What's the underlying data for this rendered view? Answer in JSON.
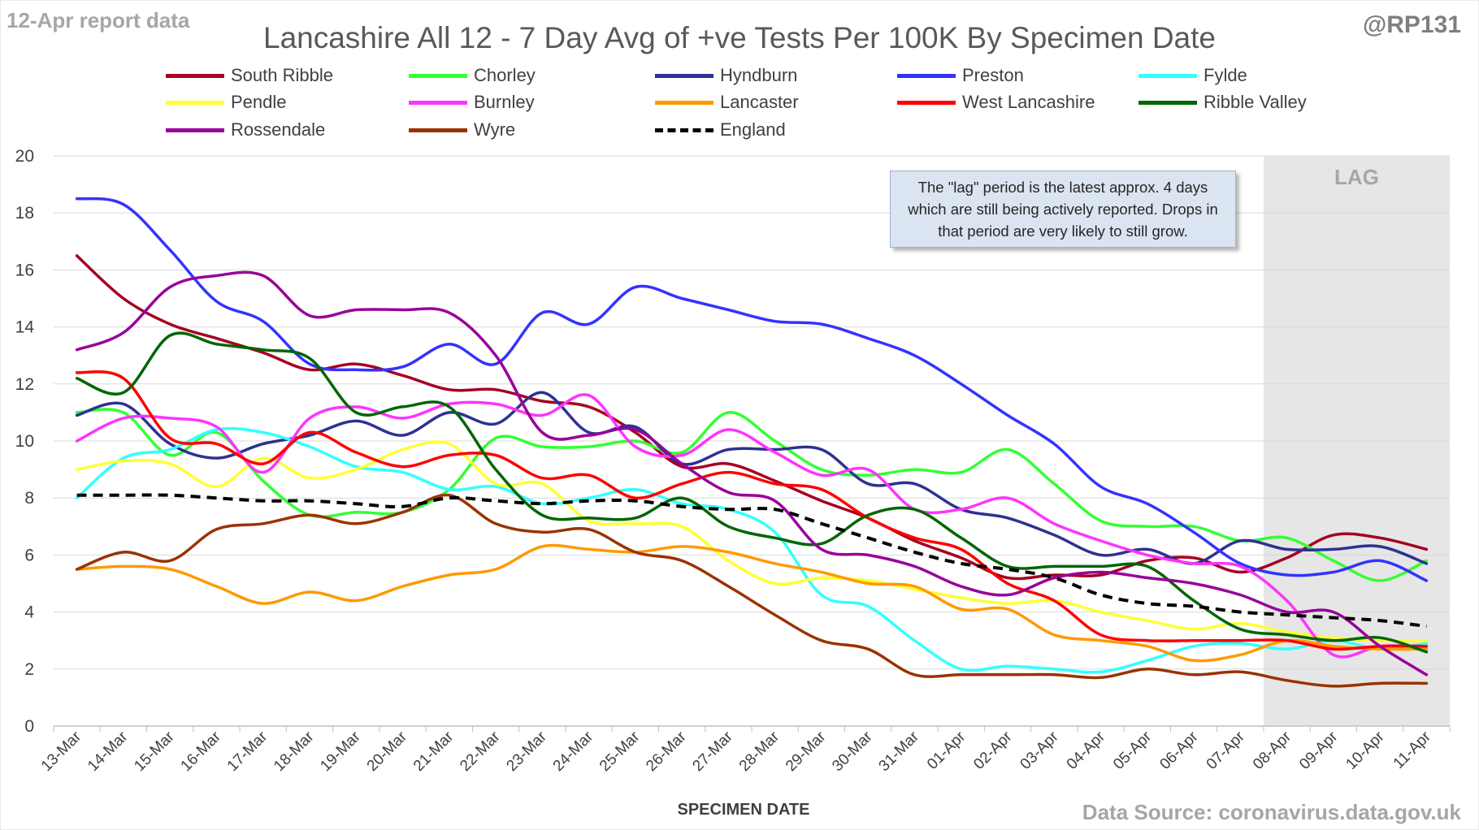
{
  "header": {
    "report_note": "12-Apr report data",
    "handle": "@RP131",
    "source": "Data Source: coronavirus.data.gov.uk"
  },
  "annotation": {
    "text": "The \"lag\" period is the latest approx. 4 days which are still being actively reported.  Drops in that period are very likely to still grow."
  },
  "chart_data": {
    "type": "line",
    "title": "Lancashire All 12 - 7 Day Avg of +ve Tests Per 100K By Specimen Date",
    "xlabel": "SPECIMEN DATE",
    "ylabel": "",
    "ylim": [
      0,
      20
    ],
    "yticks": [
      0,
      2,
      4,
      6,
      8,
      10,
      12,
      14,
      16,
      18,
      20
    ],
    "grid": true,
    "legend_position": "top",
    "lag_label": "LAG",
    "lag_start": "08-Apr",
    "x": [
      "13-Mar",
      "14-Mar",
      "15-Mar",
      "16-Mar",
      "17-Mar",
      "18-Mar",
      "19-Mar",
      "20-Mar",
      "21-Mar",
      "22-Mar",
      "23-Mar",
      "24-Mar",
      "25-Mar",
      "26-Mar",
      "27-Mar",
      "28-Mar",
      "29-Mar",
      "30-Mar",
      "31-Mar",
      "01-Apr",
      "02-Apr",
      "03-Apr",
      "04-Apr",
      "05-Apr",
      "06-Apr",
      "07-Apr",
      "08-Apr",
      "09-Apr",
      "10-Apr",
      "11-Apr"
    ],
    "series": [
      {
        "name": "South Ribble",
        "color": "#a50021",
        "dash": false,
        "values": [
          16.5,
          15.0,
          14.1,
          13.6,
          13.1,
          12.5,
          12.7,
          12.3,
          11.8,
          11.8,
          11.4,
          11.2,
          10.3,
          9.1,
          9.2,
          8.6,
          7.9,
          7.3,
          6.5,
          5.9,
          5.2,
          5.3,
          5.3,
          5.8,
          5.9,
          5.4,
          5.9,
          6.7,
          6.6,
          6.2
        ]
      },
      {
        "name": "Chorley",
        "color": "#33ff33",
        "dash": false,
        "values": [
          11.0,
          11.0,
          9.5,
          10.3,
          8.6,
          7.4,
          7.5,
          7.5,
          8.3,
          10.1,
          9.8,
          9.8,
          10.0,
          9.6,
          11.0,
          10.0,
          9.0,
          8.8,
          9.0,
          8.9,
          9.7,
          8.5,
          7.2,
          7.0,
          7.0,
          6.5,
          6.6,
          5.8,
          5.1,
          5.8
        ]
      },
      {
        "name": "Hyndburn",
        "color": "#2e3192",
        "dash": false,
        "values": [
          10.9,
          11.3,
          9.9,
          9.4,
          9.9,
          10.2,
          10.7,
          10.2,
          11.0,
          10.6,
          11.7,
          10.3,
          10.5,
          9.2,
          9.7,
          9.7,
          9.7,
          8.5,
          8.5,
          7.6,
          7.3,
          6.7,
          6.0,
          6.2,
          5.7,
          6.5,
          6.2,
          6.2,
          6.3,
          5.7
        ]
      },
      {
        "name": "Preston",
        "color": "#3333ff",
        "dash": false,
        "values": [
          18.5,
          18.3,
          16.7,
          14.9,
          14.2,
          12.7,
          12.5,
          12.6,
          13.4,
          12.7,
          14.5,
          14.1,
          15.4,
          15.0,
          14.6,
          14.2,
          14.1,
          13.6,
          13.0,
          12.0,
          10.9,
          9.9,
          8.4,
          7.8,
          6.8,
          5.7,
          5.3,
          5.4,
          5.8,
          5.1
        ]
      },
      {
        "name": "Fylde",
        "color": "#33ffff",
        "dash": false,
        "values": [
          8.0,
          9.4,
          9.7,
          10.4,
          10.3,
          9.8,
          9.1,
          8.9,
          8.3,
          8.4,
          7.8,
          8.0,
          8.3,
          7.8,
          7.6,
          6.8,
          4.6,
          4.2,
          3.0,
          2.0,
          2.1,
          2.0,
          1.9,
          2.3,
          2.8,
          2.9,
          2.7,
          3.0,
          2.7,
          2.9
        ]
      },
      {
        "name": "Pendle",
        "color": "#ffff33",
        "dash": false,
        "values": [
          9.0,
          9.3,
          9.2,
          8.4,
          9.4,
          8.7,
          9.0,
          9.7,
          9.9,
          8.5,
          8.5,
          7.2,
          7.1,
          7.0,
          5.8,
          5.0,
          5.2,
          5.1,
          4.8,
          4.5,
          4.3,
          4.4,
          4.0,
          3.7,
          3.4,
          3.6,
          3.3,
          3.1,
          3.0,
          3.0
        ]
      },
      {
        "name": "Burnley",
        "color": "#ff33ff",
        "dash": false,
        "values": [
          10.0,
          10.8,
          10.8,
          10.5,
          8.9,
          10.8,
          11.2,
          10.8,
          11.3,
          11.3,
          10.9,
          11.6,
          9.8,
          9.5,
          10.4,
          9.6,
          8.8,
          9.0,
          7.6,
          7.6,
          8.0,
          7.1,
          6.5,
          6.0,
          5.7,
          5.6,
          4.4,
          2.5,
          2.8,
          2.8
        ]
      },
      {
        "name": "Lancaster",
        "color": "#ff9900",
        "dash": false,
        "values": [
          5.5,
          5.6,
          5.5,
          4.9,
          4.3,
          4.7,
          4.4,
          4.9,
          5.3,
          5.5,
          6.3,
          6.2,
          6.1,
          6.3,
          6.1,
          5.7,
          5.4,
          5.0,
          4.9,
          4.1,
          4.1,
          3.2,
          3.0,
          2.8,
          2.3,
          2.5,
          3.0,
          2.8,
          2.7,
          2.7
        ]
      },
      {
        "name": "West Lancashire",
        "color": "#ff0000",
        "dash": false,
        "values": [
          12.4,
          12.2,
          10.1,
          9.9,
          9.2,
          10.3,
          9.6,
          9.1,
          9.5,
          9.5,
          8.7,
          8.8,
          8.0,
          8.5,
          8.9,
          8.5,
          8.3,
          7.3,
          6.6,
          6.2,
          5.0,
          4.4,
          3.2,
          3.0,
          3.0,
          3.0,
          3.0,
          2.7,
          2.8,
          2.8
        ]
      },
      {
        "name": "Ribble Valley",
        "color": "#006600",
        "dash": false,
        "values": [
          12.2,
          11.7,
          13.7,
          13.4,
          13.2,
          12.9,
          11.0,
          11.2,
          11.2,
          9.0,
          7.4,
          7.3,
          7.3,
          8.0,
          7.0,
          6.6,
          6.4,
          7.4,
          7.6,
          6.6,
          5.6,
          5.6,
          5.6,
          5.6,
          4.4,
          3.4,
          3.2,
          3.0,
          3.1,
          2.6
        ]
      },
      {
        "name": "Rossendale",
        "color": "#990099",
        "dash": false,
        "values": [
          13.2,
          13.8,
          15.4,
          15.8,
          15.8,
          14.4,
          14.6,
          14.6,
          14.5,
          13.0,
          10.3,
          10.2,
          10.4,
          9.2,
          8.2,
          7.9,
          6.2,
          6.0,
          5.6,
          4.9,
          4.6,
          5.2,
          5.4,
          5.2,
          5.0,
          4.6,
          4.0,
          4.0,
          2.8,
          1.8
        ]
      },
      {
        "name": "Wyre",
        "color": "#993300",
        "dash": false,
        "values": [
          5.5,
          6.1,
          5.8,
          6.9,
          7.1,
          7.4,
          7.1,
          7.5,
          8.1,
          7.1,
          6.8,
          6.9,
          6.1,
          5.8,
          4.9,
          3.9,
          3.0,
          2.7,
          1.8,
          1.8,
          1.8,
          1.8,
          1.7,
          2.0,
          1.8,
          1.9,
          1.6,
          1.4,
          1.5,
          1.5
        ]
      },
      {
        "name": "England",
        "color": "#000000",
        "dash": true,
        "values": [
          8.1,
          8.1,
          8.1,
          8.0,
          7.9,
          7.9,
          7.8,
          7.7,
          8.0,
          7.9,
          7.8,
          7.9,
          7.9,
          7.7,
          7.6,
          7.6,
          7.1,
          6.6,
          6.1,
          5.7,
          5.5,
          5.2,
          4.6,
          4.3,
          4.2,
          4.0,
          3.9,
          3.8,
          3.7,
          3.5
        ]
      }
    ]
  }
}
